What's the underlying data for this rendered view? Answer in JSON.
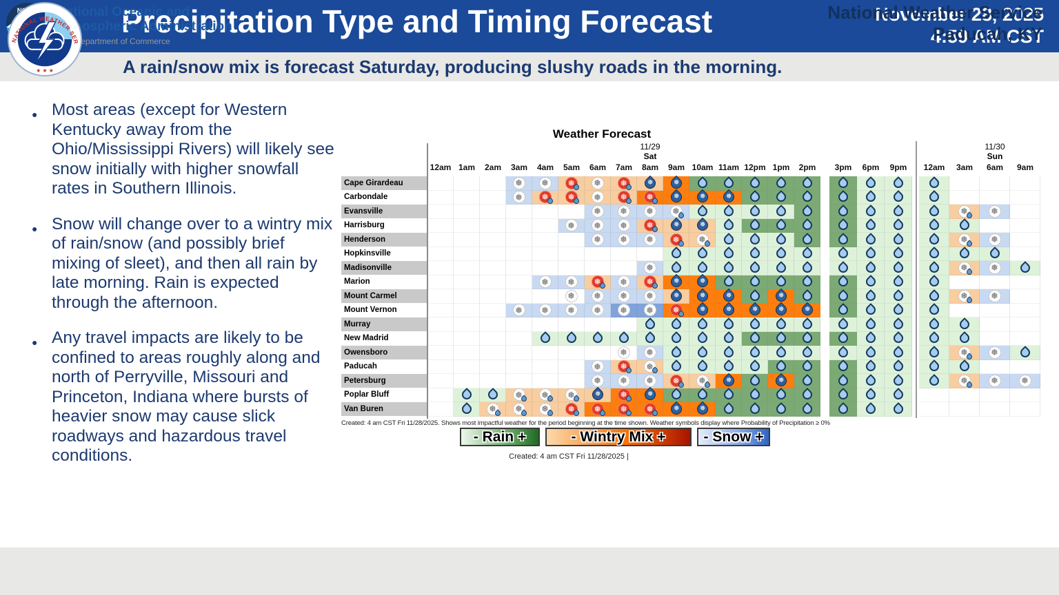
{
  "header": {
    "title": "Precipitation Type and Timing Forecast",
    "date": "November 28, 2025",
    "time": "4:59 AM CST",
    "subtitle": "A rain/snow mix is forecast Saturday, producing slushy roads in the morning.",
    "logo_ring_text": "NATIONAL WEATHER SERVICE",
    "logo_stars": "★ ★ ★"
  },
  "bullets": [
    "Most areas (except for Western Kentucky away from the Ohio/Mississippi Rivers) will likely see snow initially with higher snowfall rates in Southern Illinois.",
    "Snow will change over to a wintry mix of rain/snow (and possibly brief mixing of sleet), and then all rain by late morning. Rain is expected through the afternoon.",
    "Any travel impacts are likely to be confined to areas roughly along and north of Perryville, Missouri and Princeton, Indiana where bursts of heavier snow may cause slick roadways and hazardous travel conditions."
  ],
  "chart_data": {
    "type": "heatmap",
    "title": "Weather Forecast",
    "day_markers": [
      {
        "date": "11/29",
        "day": "Sat",
        "column_index": 8
      },
      {
        "date": "11/30",
        "day": "Sun",
        "column_index": 20
      }
    ],
    "columns": [
      "12am",
      "1am",
      "2am",
      "3am",
      "4am",
      "5am",
      "6am",
      "7am",
      "8am",
      "9am",
      "10am",
      "11am",
      "12pm",
      "1pm",
      "2pm",
      "3pm",
      "6pm",
      "9pm",
      "12am",
      "3am",
      "6am",
      "9am"
    ],
    "cell_code_legend": {
      "bg": {
        "w": "none",
        "b": "snow-light-blue",
        "B": "snow-heavy-blue",
        "o": "wintry-mix-light-orange",
        "O": "wintry-mix-heavy-orange",
        "g": "rain-light-green",
        "G": "rain-heavy-green"
      },
      "icon": {
        "s": "snowflake",
        "sd": "snowflake-with-drop",
        "m": "wintry-mix-red-circle",
        "M": "rain-snow-drop",
        "r": "raindrop"
      }
    },
    "rows": [
      {
        "city": "Cape Girardeau",
        "cells": [
          "",
          "",
          "",
          "b:s",
          "b:s",
          "o:m",
          "o:s",
          "o:m",
          "o:M",
          "O:M",
          "G:r",
          "G:r",
          "G:r",
          "G:r",
          "G:r",
          "G:r",
          "g:r",
          "g:r",
          "g:r",
          "",
          "",
          ""
        ]
      },
      {
        "city": "Carbondale",
        "cells": [
          "",
          "",
          "",
          "b:s",
          "o:m",
          "o:m",
          "o:s",
          "o:m",
          "O:m",
          "O:M",
          "O:M",
          "O:M",
          "G:r",
          "G:r",
          "G:r",
          "G:r",
          "g:r",
          "g:r",
          "g:r",
          "",
          "",
          ""
        ]
      },
      {
        "city": "Evansville",
        "cells": [
          "",
          "",
          "",
          "",
          "",
          "",
          "b:s",
          "b:s",
          "b:s",
          "b:sd",
          "g:r",
          "g:r",
          "g:r",
          "g:r",
          "G:r",
          "G:r",
          "g:r",
          "g:r",
          "g:r",
          "o:sd",
          "b:s",
          ""
        ]
      },
      {
        "city": "Harrisburg",
        "cells": [
          "",
          "",
          "",
          "",
          "",
          "b:s",
          "b:s",
          "b:s",
          "o:m",
          "o:M",
          "o:M",
          "g:r",
          "G:r",
          "G:r",
          "G:r",
          "G:r",
          "g:r",
          "g:r",
          "g:r",
          "g:r",
          "",
          ""
        ]
      },
      {
        "city": "Henderson",
        "cells": [
          "",
          "",
          "",
          "",
          "",
          "",
          "b:s",
          "b:s",
          "b:s",
          "o:m",
          "o:sd",
          "g:r",
          "g:r",
          "g:r",
          "G:r",
          "G:r",
          "g:r",
          "g:r",
          "g:r",
          "o:sd",
          "b:s",
          ""
        ]
      },
      {
        "city": "Hopkinsville",
        "cells": [
          "",
          "",
          "",
          "",
          "",
          "",
          "",
          "",
          "",
          "g:r",
          "g:r",
          "g:r",
          "g:r",
          "g:r",
          "g:r",
          "g:r",
          "g:r",
          "g:r",
          "g:r",
          "g:r",
          "g:r",
          ""
        ]
      },
      {
        "city": "Madisonville",
        "cells": [
          "",
          "",
          "",
          "",
          "",
          "",
          "",
          "",
          "b:s",
          "g:r",
          "g:r",
          "g:r",
          "g:r",
          "g:r",
          "g:r",
          "g:r",
          "g:r",
          "g:r",
          "g:r",
          "o:sd",
          "b:s",
          "g:r"
        ]
      },
      {
        "city": "Marion",
        "cells": [
          "",
          "",
          "",
          "",
          "b:s",
          "b:s",
          "o:m",
          "b:s",
          "o:m",
          "O:M",
          "O:M",
          "G:r",
          "G:r",
          "G:r",
          "G:r",
          "G:r",
          "g:r",
          "g:r",
          "g:r",
          "",
          "",
          ""
        ]
      },
      {
        "city": "Mount Carmel",
        "cells": [
          "",
          "",
          "",
          "",
          "",
          "w:s",
          "b:s",
          "b:s",
          "b:s",
          "o:M",
          "O:M",
          "O:M",
          "G:r",
          "O:M",
          "G:r",
          "G:r",
          "g:r",
          "g:r",
          "g:r",
          "o:sd",
          "b:s",
          ""
        ]
      },
      {
        "city": "Mount Vernon",
        "cells": [
          "",
          "",
          "",
          "b:s",
          "b:s",
          "b:s",
          "b:s",
          "B:s",
          "B:s",
          "O:m",
          "O:M",
          "O:M",
          "O:M",
          "O:M",
          "O:M",
          "G:r",
          "g:r",
          "g:r",
          "g:r",
          "",
          "",
          ""
        ]
      },
      {
        "city": "Murray",
        "cells": [
          "",
          "",
          "",
          "",
          "",
          "",
          "",
          "",
          "g:r",
          "g:r",
          "g:r",
          "g:r",
          "g:r",
          "g:r",
          "g:r",
          "g:r",
          "g:r",
          "g:r",
          "g:r",
          "g:r",
          "",
          ""
        ]
      },
      {
        "city": "New Madrid",
        "cells": [
          "",
          "",
          "",
          "",
          "g:r",
          "g:r",
          "g:r",
          "g:r",
          "g:r",
          "g:r",
          "g:r",
          "g:r",
          "G:r",
          "G:r",
          "G:r",
          "G:r",
          "g:r",
          "g:r",
          "g:r",
          "g:r",
          "",
          ""
        ]
      },
      {
        "city": "Owensboro",
        "cells": [
          "",
          "",
          "",
          "",
          "",
          "",
          "",
          "w:s",
          "b:s",
          "g:r",
          "g:r",
          "g:r",
          "g:r",
          "g:r",
          "g:r",
          "g:r",
          "g:r",
          "g:r",
          "g:r",
          "o:sd",
          "b:s",
          "g:r"
        ]
      },
      {
        "city": "Paducah",
        "cells": [
          "",
          "",
          "",
          "",
          "",
          "",
          "b:s",
          "o:m",
          "o:sd",
          "g:r",
          "g:r",
          "g:r",
          "g:r",
          "G:r",
          "G:r",
          "G:r",
          "g:r",
          "g:r",
          "g:r",
          "g:r",
          "",
          ""
        ]
      },
      {
        "city": "Petersburg",
        "cells": [
          "",
          "",
          "",
          "",
          "",
          "",
          "b:s",
          "b:s",
          "b:s",
          "o:m",
          "o:sd",
          "O:M",
          "G:r",
          "O:M",
          "G:r",
          "G:r",
          "g:r",
          "g:r",
          "g:r",
          "o:sd",
          "b:s",
          "b:s"
        ]
      },
      {
        "city": "Poplar Bluff",
        "cells": [
          "",
          "g:r",
          "g:r",
          "o:sd",
          "o:sd",
          "o:sd",
          "o:M",
          "O:m",
          "O:M",
          "G:r",
          "G:r",
          "G:r",
          "G:r",
          "G:r",
          "G:r",
          "G:r",
          "g:r",
          "g:r",
          "",
          "",
          "",
          ""
        ]
      },
      {
        "city": "Van Buren",
        "cells": [
          "",
          "g:r",
          "o:sd",
          "o:sd",
          "o:sd",
          "o:m",
          "O:m",
          "O:m",
          "O:m",
          "O:M",
          "O:M",
          "G:r",
          "G:r",
          "G:r",
          "G:r",
          "G:r",
          "g:r",
          "g:r",
          "",
          "",
          "",
          ""
        ]
      }
    ],
    "caption_top": "Created: 4 am CST Fri 11/28/2025. Shows most impactful weather for the period beginning at the time shown. Weather symbols display where Probability of Precipitation ≥ 0%",
    "legend": [
      {
        "label": "- Rain +",
        "type": "rain"
      },
      {
        "label": "- Wintry Mix +",
        "type": "wintry"
      },
      {
        "label": "- Snow +",
        "type": "snow"
      }
    ],
    "caption_bottom": "Created: 4 am CST Fri 11/28/2025 |",
    "legend_position": "bottom-center",
    "grid": "on"
  },
  "footer": {
    "noaa_logo_text": "NOAA",
    "agency_line1": "National Oceanic and",
    "agency_line2": "Atmospheric Administration",
    "agency_line3": "U.S. Department of Commerce",
    "office_line1": "National Weather Service",
    "office_line2": "Paducah, KY"
  },
  "colors": {
    "header_blue": "#1a4a99",
    "subtitle_band": "#e8e8e6",
    "text_navy": "#1c3a70",
    "rain_light": "#def2da",
    "rain_heavy": "#7caa74",
    "wintry_light": "#f8cda0",
    "wintry_heavy": "#fd7e0e",
    "snow_light": "#c8d9f2",
    "snow_heavy": "#7fa3da",
    "mix_red_icon": "#e23a28",
    "label_shade": "#c9c9c9"
  }
}
